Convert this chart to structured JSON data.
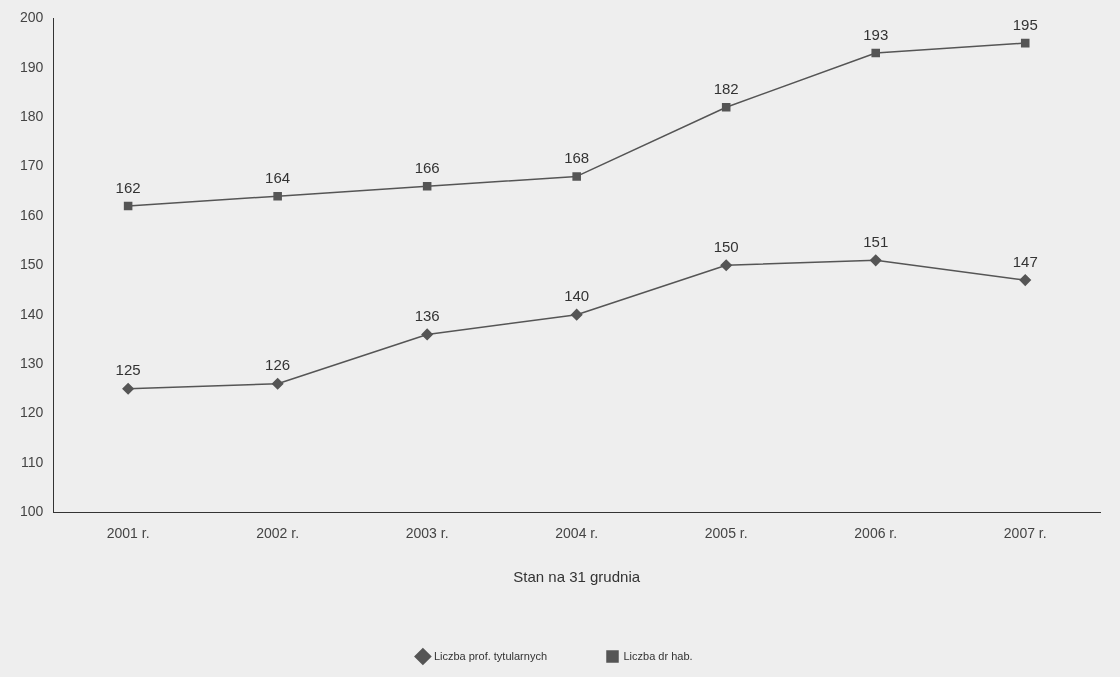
{
  "chart_data": {
    "type": "line",
    "xlabel": "Stan na 31 grudnia",
    "categories": [
      "2001 r.",
      "2002 r.",
      "2003 r.",
      "2004 r.",
      "2005 r.",
      "2006 r.",
      "2007 r."
    ],
    "series": [
      {
        "name": "Liczba prof. tytularnych",
        "color": "#555555",
        "marker": "diamond",
        "values": [
          125,
          126,
          136,
          140,
          150,
          151,
          147
        ]
      },
      {
        "name": "Liczba dr hab.",
        "color": "#555555",
        "marker": "square",
        "values": [
          162,
          164,
          166,
          168,
          182,
          193,
          195
        ]
      }
    ],
    "ylim": [
      100,
      200
    ],
    "yticks": [
      100,
      110,
      120,
      130,
      140,
      150,
      160,
      170,
      180,
      190,
      200
    ],
    "grid": false,
    "legend": "bottom",
    "data_labels": true,
    "line_style": "solid"
  }
}
